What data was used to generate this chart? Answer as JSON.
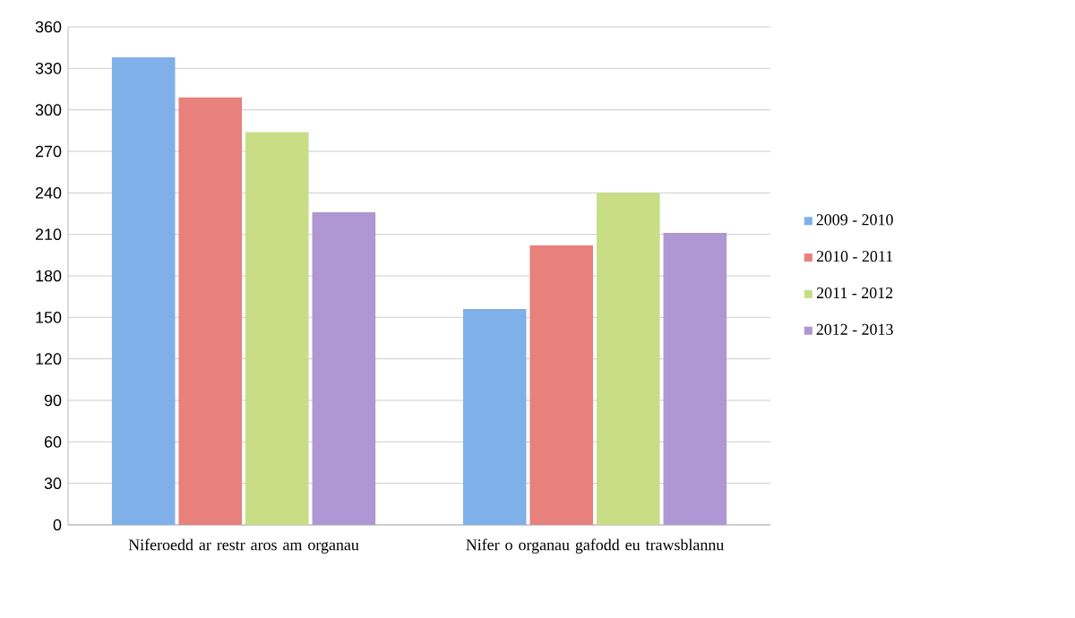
{
  "chart_data": {
    "type": "bar",
    "categories": [
      "Niferoedd ar restr aros am organau",
      "Nifer o organau gafodd eu trawsblannu"
    ],
    "series": [
      {
        "name": "2009 - 2010",
        "color": "#7fb0ea",
        "values": [
          338,
          156
        ]
      },
      {
        "name": "2010 - 2011",
        "color": "#e8807c",
        "values": [
          309,
          202
        ]
      },
      {
        "name": "2011 - 2012",
        "color": "#c8dd85",
        "values": [
          284,
          240
        ]
      },
      {
        "name": "2012 - 2013",
        "color": "#ae97d2",
        "values": [
          226,
          211
        ]
      }
    ],
    "ylim": [
      0,
      360
    ],
    "yticks": [
      0,
      30,
      60,
      90,
      120,
      150,
      180,
      210,
      240,
      270,
      300,
      330,
      360
    ],
    "grid": "y",
    "legend": "right"
  }
}
